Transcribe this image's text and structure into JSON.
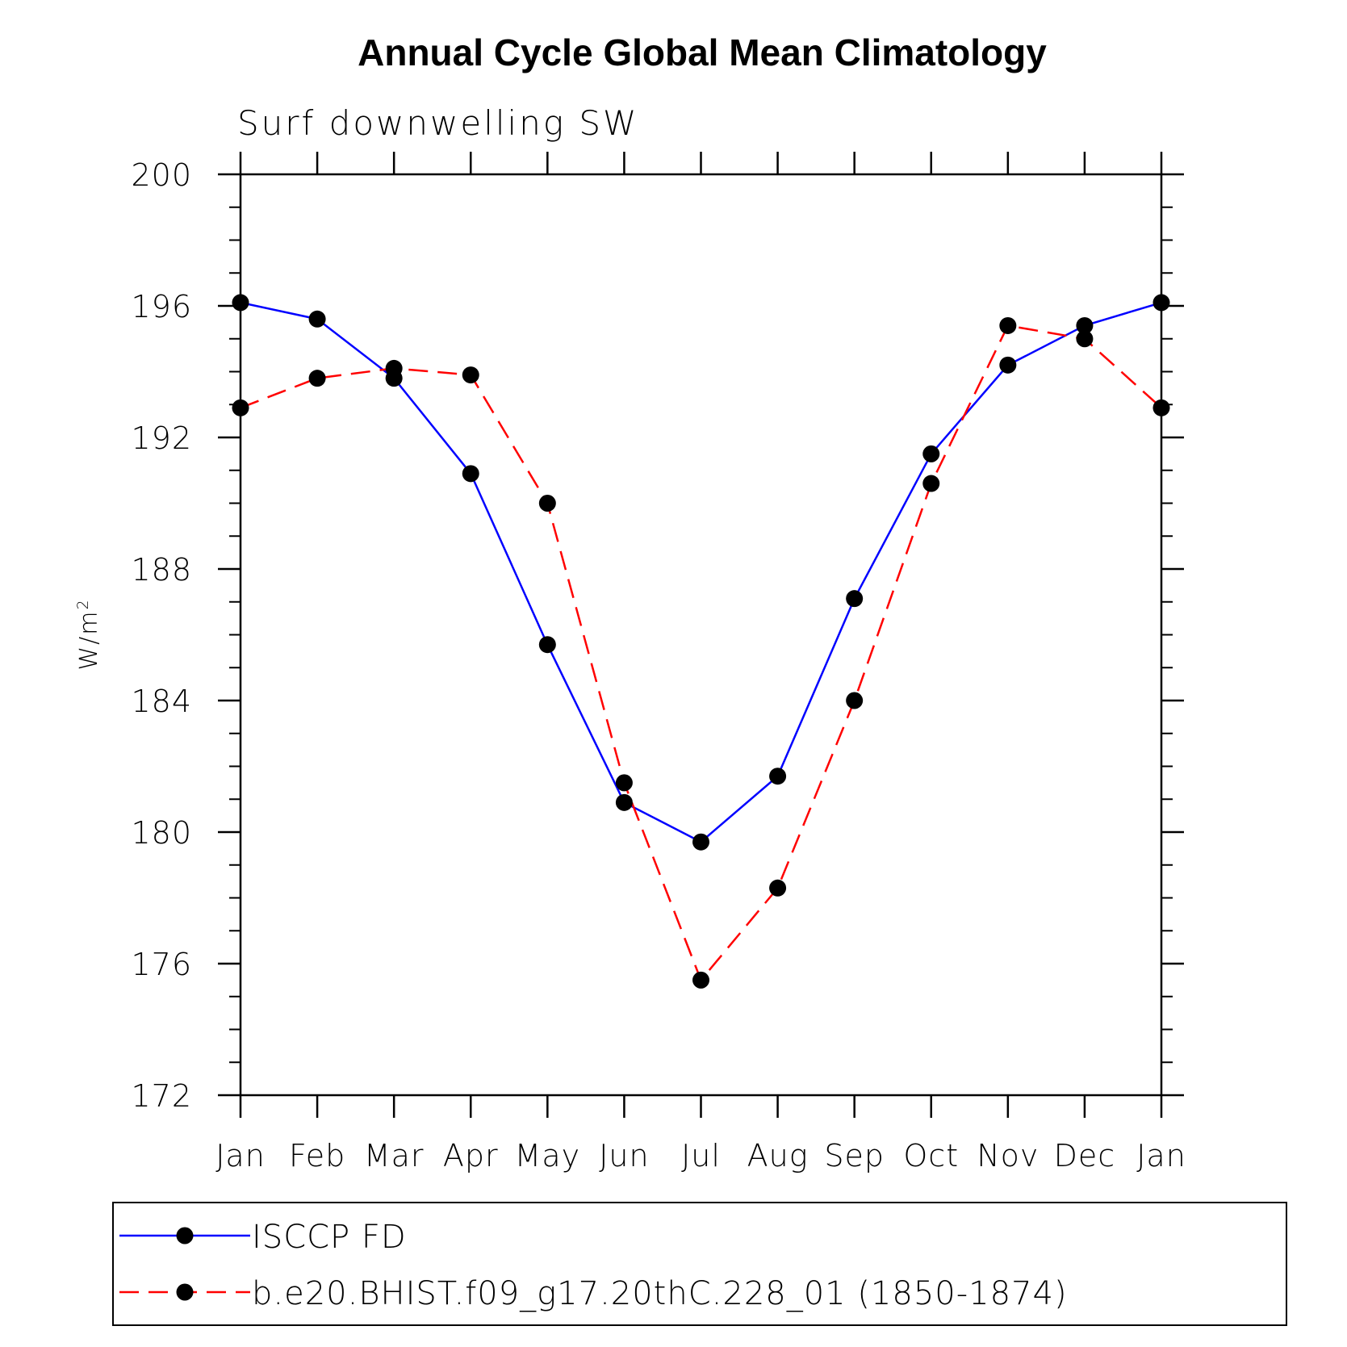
{
  "chart_data": {
    "type": "line",
    "title": "Annual Cycle Global Mean Climatology",
    "subtitle": "Surf downwelling SW",
    "ylabel": "W/m",
    "ylabel_superscript": "2",
    "xlabel": "",
    "categories": [
      "Jan",
      "Feb",
      "Mar",
      "Apr",
      "May",
      "Jun",
      "Jul",
      "Aug",
      "Sep",
      "Oct",
      "Nov",
      "Dec",
      "Jan"
    ],
    "ylim": [
      172,
      200
    ],
    "yticks": [
      172,
      176,
      180,
      184,
      188,
      192,
      196,
      200
    ],
    "ytick_labels": [
      "172",
      "176",
      "180",
      "184",
      "188",
      "192",
      "196",
      "200"
    ],
    "y_minor_step": 1,
    "grid": false,
    "legend_position": "bottom",
    "series": [
      {
        "name": "ISCCP FD",
        "color": "#0000ff",
        "dash": "solid",
        "marker": "filled-circle",
        "values": [
          196.1,
          195.6,
          193.8,
          190.9,
          185.7,
          180.9,
          179.7,
          181.7,
          187.1,
          191.5,
          194.2,
          195.4,
          196.1
        ]
      },
      {
        "name": "b.e20.BHIST.f09_g17.20thC.228_01 (1850-1874)",
        "color": "#ff0000",
        "dash": "dashed",
        "marker": "filled-circle",
        "values": [
          192.9,
          193.8,
          194.1,
          193.9,
          190.0,
          181.5,
          175.5,
          178.3,
          184.0,
          190.6,
          195.4,
          195.0,
          192.9
        ]
      }
    ],
    "marker_color": "#000000",
    "axis_color": "#000000"
  }
}
